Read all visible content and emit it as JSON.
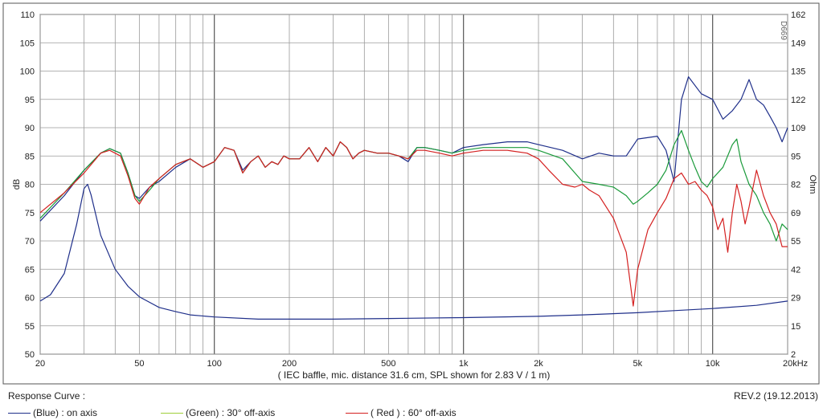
{
  "chart_data": {
    "type": "line",
    "xscale": "log",
    "xlim": [
      20,
      20000
    ],
    "ylim_left": [
      50,
      110
    ],
    "ylim_right": [
      2,
      162
    ],
    "ylabel": "dB",
    "ylabel_right": "Ohm",
    "xlabel": "( IEC baffle, mic. distance 31.6 cm, SPL shown for 2.83 V / 1 m)",
    "corner_mark": "D669",
    "x_ticks": [
      {
        "value": 20,
        "label": "20"
      },
      {
        "value": 50,
        "label": "50"
      },
      {
        "value": 100,
        "label": "100"
      },
      {
        "value": 200,
        "label": "200"
      },
      {
        "value": 500,
        "label": "500"
      },
      {
        "value": 1000,
        "label": "1k"
      },
      {
        "value": 2000,
        "label": "2k"
      },
      {
        "value": 5000,
        "label": "5k"
      },
      {
        "value": 10000,
        "label": "10k"
      },
      {
        "value": 20000,
        "label": "20kHz"
      }
    ],
    "y_ticks_left": [
      "50",
      "55",
      "60",
      "65",
      "70",
      "75",
      "80",
      "85",
      "90",
      "95",
      "100",
      "105",
      "110"
    ],
    "y_ticks_right": [
      "2",
      "15",
      "29",
      "42",
      "55",
      "69",
      "82",
      "95",
      "109",
      "122",
      "135",
      "149",
      "162"
    ],
    "grid": true,
    "legend": {
      "title": "Response Curve :",
      "revision": "REV.2 (19.12.2013)",
      "entries": [
        {
          "color_label": "(Blue)",
          "text": ": on axis",
          "color": "#1f2f8a"
        },
        {
          "color_label": "(Green)",
          "text": ": 30° off-axis",
          "color": "#1a9a3a"
        },
        {
          "color_label": "( Red )",
          "text": ": 60° off-axis",
          "color": "#d42020"
        }
      ]
    },
    "series": [
      {
        "key": "on_axis",
        "axis": "left",
        "color": "#1f2f8a",
        "points": [
          [
            20,
            73.5
          ],
          [
            25,
            78
          ],
          [
            30,
            82.5
          ],
          [
            35,
            85.5
          ],
          [
            38,
            86.3
          ],
          [
            42,
            85.5
          ],
          [
            45,
            82
          ],
          [
            48,
            78
          ],
          [
            50,
            77.5
          ],
          [
            55,
            79.5
          ],
          [
            60,
            80.5
          ],
          [
            70,
            83
          ],
          [
            80,
            84.5
          ],
          [
            90,
            83
          ],
          [
            100,
            84
          ],
          [
            110,
            86.5
          ],
          [
            120,
            86
          ],
          [
            130,
            82.5
          ],
          [
            140,
            84
          ],
          [
            150,
            85
          ],
          [
            160,
            83
          ],
          [
            170,
            84
          ],
          [
            180,
            83.5
          ],
          [
            190,
            85
          ],
          [
            200,
            84.5
          ],
          [
            220,
            84.5
          ],
          [
            240,
            86.5
          ],
          [
            260,
            84
          ],
          [
            280,
            86.5
          ],
          [
            300,
            85
          ],
          [
            320,
            87.5
          ],
          [
            340,
            86.5
          ],
          [
            360,
            84.5
          ],
          [
            380,
            85.5
          ],
          [
            400,
            86
          ],
          [
            450,
            85.5
          ],
          [
            500,
            85.5
          ],
          [
            550,
            85
          ],
          [
            600,
            84
          ],
          [
            650,
            86.5
          ],
          [
            700,
            86.5
          ],
          [
            800,
            86
          ],
          [
            900,
            85.5
          ],
          [
            1000,
            86.5
          ],
          [
            1200,
            87
          ],
          [
            1500,
            87.5
          ],
          [
            1800,
            87.5
          ],
          [
            2000,
            87
          ],
          [
            2500,
            86
          ],
          [
            3000,
            84.5
          ],
          [
            3500,
            85.5
          ],
          [
            4000,
            85
          ],
          [
            4500,
            85
          ],
          [
            5000,
            88
          ],
          [
            6000,
            88.5
          ],
          [
            6500,
            86
          ],
          [
            7000,
            80.5
          ],
          [
            7500,
            95
          ],
          [
            8000,
            99
          ],
          [
            9000,
            96
          ],
          [
            10000,
            95
          ],
          [
            11000,
            91.5
          ],
          [
            12000,
            93
          ],
          [
            13000,
            95
          ],
          [
            14000,
            98.5
          ],
          [
            15000,
            95
          ],
          [
            16000,
            94
          ],
          [
            17000,
            92
          ],
          [
            18000,
            90
          ],
          [
            19000,
            87.5
          ],
          [
            20000,
            90
          ]
        ]
      },
      {
        "key": "off_30",
        "axis": "left",
        "color": "#1a9a3a",
        "points": [
          [
            20,
            74
          ],
          [
            25,
            78.5
          ],
          [
            30,
            82.5
          ],
          [
            35,
            85.5
          ],
          [
            38,
            86.3
          ],
          [
            42,
            85.5
          ],
          [
            45,
            82
          ],
          [
            48,
            78
          ],
          [
            50,
            77
          ],
          [
            55,
            79
          ],
          [
            60,
            81
          ],
          [
            70,
            83.5
          ],
          [
            80,
            84.5
          ],
          [
            90,
            83
          ],
          [
            100,
            84
          ],
          [
            110,
            86.5
          ],
          [
            120,
            86
          ],
          [
            130,
            82
          ],
          [
            140,
            84
          ],
          [
            150,
            85
          ],
          [
            160,
            83
          ],
          [
            170,
            84
          ],
          [
            180,
            83.5
          ],
          [
            190,
            85
          ],
          [
            200,
            84.5
          ],
          [
            220,
            84.5
          ],
          [
            240,
            86.5
          ],
          [
            260,
            84
          ],
          [
            280,
            86.5
          ],
          [
            300,
            85
          ],
          [
            320,
            87.5
          ],
          [
            340,
            86.5
          ],
          [
            360,
            84.5
          ],
          [
            380,
            85.5
          ],
          [
            400,
            86
          ],
          [
            450,
            85.5
          ],
          [
            500,
            85.5
          ],
          [
            550,
            85
          ],
          [
            600,
            84.5
          ],
          [
            650,
            86.5
          ],
          [
            700,
            86.5
          ],
          [
            800,
            86
          ],
          [
            900,
            85.5
          ],
          [
            1000,
            86
          ],
          [
            1200,
            86.5
          ],
          [
            1500,
            86.5
          ],
          [
            1800,
            86.5
          ],
          [
            2000,
            86
          ],
          [
            2500,
            84.5
          ],
          [
            2800,
            82
          ],
          [
            3000,
            80.5
          ],
          [
            3500,
            80
          ],
          [
            4000,
            79.5
          ],
          [
            4500,
            78
          ],
          [
            4800,
            76.5
          ],
          [
            5000,
            77
          ],
          [
            5500,
            78.5
          ],
          [
            6000,
            80
          ],
          [
            6500,
            82.5
          ],
          [
            7000,
            87
          ],
          [
            7500,
            89.5
          ],
          [
            8000,
            86
          ],
          [
            8500,
            83
          ],
          [
            9000,
            80.5
          ],
          [
            9500,
            79.5
          ],
          [
            10000,
            81
          ],
          [
            11000,
            83
          ],
          [
            12000,
            87
          ],
          [
            12500,
            88
          ],
          [
            13000,
            84
          ],
          [
            14000,
            80
          ],
          [
            15000,
            78
          ],
          [
            16000,
            75
          ],
          [
            17000,
            73
          ],
          [
            18000,
            70
          ],
          [
            19000,
            73
          ],
          [
            20000,
            72
          ]
        ]
      },
      {
        "key": "off_60",
        "axis": "left",
        "color": "#d42020",
        "points": [
          [
            20,
            75
          ],
          [
            25,
            78.5
          ],
          [
            30,
            82
          ],
          [
            35,
            85.5
          ],
          [
            38,
            86
          ],
          [
            42,
            85
          ],
          [
            45,
            81.5
          ],
          [
            48,
            77.5
          ],
          [
            50,
            76.5
          ],
          [
            55,
            79.5
          ],
          [
            60,
            81
          ],
          [
            70,
            83.5
          ],
          [
            80,
            84.5
          ],
          [
            90,
            83
          ],
          [
            100,
            84
          ],
          [
            110,
            86.5
          ],
          [
            120,
            86
          ],
          [
            130,
            82
          ],
          [
            140,
            84
          ],
          [
            150,
            85
          ],
          [
            160,
            83
          ],
          [
            170,
            84
          ],
          [
            180,
            83.5
          ],
          [
            190,
            85
          ],
          [
            200,
            84.5
          ],
          [
            220,
            84.5
          ],
          [
            240,
            86.5
          ],
          [
            260,
            84
          ],
          [
            280,
            86.5
          ],
          [
            300,
            85
          ],
          [
            320,
            87.5
          ],
          [
            340,
            86.5
          ],
          [
            360,
            84.5
          ],
          [
            380,
            85.5
          ],
          [
            400,
            86
          ],
          [
            450,
            85.5
          ],
          [
            500,
            85.5
          ],
          [
            550,
            85
          ],
          [
            600,
            84.5
          ],
          [
            650,
            86
          ],
          [
            700,
            86
          ],
          [
            800,
            85.5
          ],
          [
            900,
            85
          ],
          [
            1000,
            85.5
          ],
          [
            1200,
            86
          ],
          [
            1500,
            86
          ],
          [
            1800,
            85.5
          ],
          [
            2000,
            84.5
          ],
          [
            2200,
            82.5
          ],
          [
            2500,
            80
          ],
          [
            2800,
            79.5
          ],
          [
            3000,
            80
          ],
          [
            3200,
            79
          ],
          [
            3500,
            78
          ],
          [
            4000,
            74
          ],
          [
            4500,
            68
          ],
          [
            4800,
            58.5
          ],
          [
            5000,
            65
          ],
          [
            5500,
            72
          ],
          [
            6000,
            75
          ],
          [
            6500,
            77.5
          ],
          [
            7000,
            81
          ],
          [
            7500,
            82
          ],
          [
            8000,
            80
          ],
          [
            8500,
            80.5
          ],
          [
            9000,
            79
          ],
          [
            9500,
            78
          ],
          [
            10000,
            76
          ],
          [
            10500,
            72
          ],
          [
            11000,
            74
          ],
          [
            11500,
            68
          ],
          [
            12000,
            75
          ],
          [
            12500,
            80
          ],
          [
            13000,
            77
          ],
          [
            13500,
            73
          ],
          [
            14000,
            76
          ],
          [
            15000,
            82.5
          ],
          [
            16000,
            78
          ],
          [
            17000,
            75
          ],
          [
            18000,
            73
          ],
          [
            19000,
            69
          ],
          [
            20000,
            69
          ]
        ]
      },
      {
        "key": "impedance",
        "axis": "right",
        "color": "#1f2f8a",
        "points": [
          [
            20,
            27
          ],
          [
            22,
            30
          ],
          [
            25,
            40
          ],
          [
            28,
            63
          ],
          [
            30,
            80
          ],
          [
            31,
            82
          ],
          [
            32,
            77
          ],
          [
            35,
            58
          ],
          [
            40,
            42
          ],
          [
            45,
            34
          ],
          [
            50,
            29
          ],
          [
            60,
            24
          ],
          [
            70,
            22
          ],
          [
            80,
            20.5
          ],
          [
            100,
            19.5
          ],
          [
            150,
            18.5
          ],
          [
            200,
            18.5
          ],
          [
            300,
            18.5
          ],
          [
            500,
            18.8
          ],
          [
            1000,
            19.2
          ],
          [
            2000,
            19.8
          ],
          [
            3000,
            20.5
          ],
          [
            5000,
            21.5
          ],
          [
            7000,
            22.5
          ],
          [
            10000,
            23.5
          ],
          [
            15000,
            25
          ],
          [
            20000,
            27
          ]
        ]
      }
    ]
  }
}
